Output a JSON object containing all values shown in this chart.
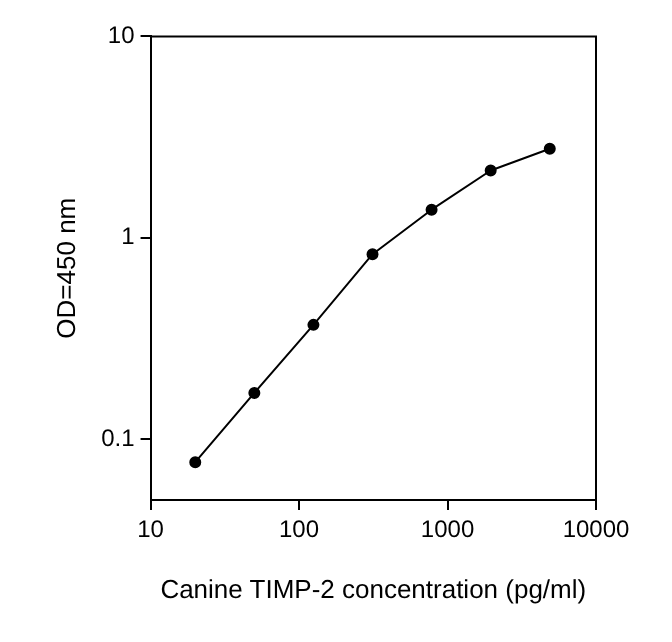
{
  "chart_data": {
    "type": "line",
    "xlabel": "Canine TIMP-2 concentration (pg/ml)",
    "ylabel": "OD=450 nm",
    "log": "xy",
    "x": [
      20,
      50,
      125,
      312.5,
      781,
      1953,
      4883
    ],
    "series": [
      {
        "color": "#000000",
        "values": [
          0.077,
          0.17,
          0.37,
          0.83,
          1.38,
          2.16,
          2.77
        ]
      }
    ],
    "xlim": [
      10,
      10000
    ],
    "xticks": [
      10,
      100,
      1000,
      10000
    ],
    "ylim": [
      0.05,
      10
    ],
    "yticks": [
      0.1,
      1,
      10
    ],
    "grid": false,
    "legend": false,
    "marker": "circle",
    "line_style": "solid"
  }
}
